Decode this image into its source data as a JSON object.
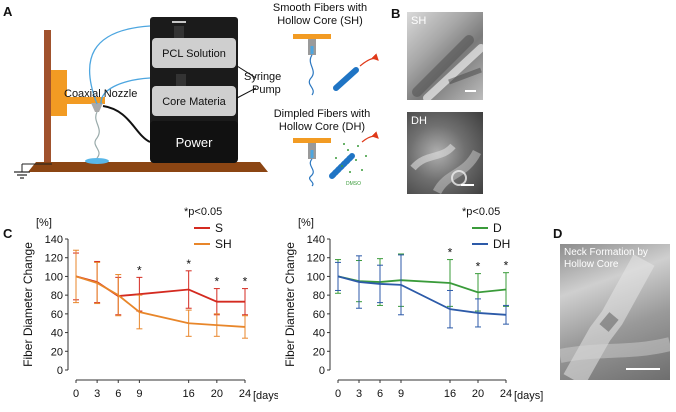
{
  "panel_a": {
    "letter": "A",
    "pcl_label": "PCL Solution",
    "core_label": "Core Materia",
    "power_label": "Power",
    "nozzle_label": "Coaxial Nozzle",
    "pump_label_1": "Syringe",
    "pump_label_2": "Pump",
    "sh_title_1": "Smooth Fibers with",
    "sh_title_2": "Hollow Core (SH)",
    "dh_title_1": "Dimpled Fibers with",
    "dh_title_2": "Hollow Core (DH)",
    "dmso_label": "DMSO"
  },
  "panel_b": {
    "letter": "B",
    "sh_label": "SH",
    "dh_label": "DH"
  },
  "panel_c": {
    "letter": "C"
  },
  "panel_d": {
    "letter": "D",
    "caption_1": "Neck Formation by",
    "caption_2": "Hollow Core"
  },
  "colors": {
    "S": "#d42a20",
    "SH": "#e8862a",
    "D": "#3a9b3a",
    "DH": "#2c5aa8"
  },
  "chart_data": [
    {
      "type": "line",
      "ylabel": "Fiber Diameter Change",
      "yunit": "[%]",
      "xunit": "[days]",
      "ylim": [
        0,
        140
      ],
      "yticks": [
        0,
        20,
        40,
        60,
        80,
        100,
        120,
        140
      ],
      "x": [
        0,
        3,
        6,
        9,
        16,
        20,
        24
      ],
      "significance_note": "*p<0.05",
      "significant_x": [
        9,
        16,
        20,
        24
      ],
      "series": [
        {
          "name": "S",
          "color_key": "S",
          "values": [
            100,
            94,
            79,
            81,
            86,
            73,
            73
          ],
          "errors": [
            25,
            22,
            20,
            18,
            20,
            14,
            14
          ]
        },
        {
          "name": "SH",
          "color_key": "SH",
          "values": [
            100,
            93,
            80,
            62,
            50,
            48,
            46
          ],
          "errors": [
            28,
            22,
            22,
            18,
            14,
            12,
            12
          ]
        }
      ]
    },
    {
      "type": "line",
      "ylabel": "Fiber Diameter Change",
      "yunit": "[%]",
      "xunit": "[days]",
      "ylim": [
        0,
        140
      ],
      "yticks": [
        0,
        20,
        40,
        60,
        80,
        100,
        120,
        140
      ],
      "x": [
        0,
        3,
        6,
        9,
        16,
        20,
        24
      ],
      "significance_note": "*p<0.05",
      "significant_x": [
        16,
        20,
        24
      ],
      "series": [
        {
          "name": "D",
          "color_key": "D",
          "values": [
            100,
            95,
            94,
            96,
            93,
            83,
            86
          ],
          "errors": [
            18,
            22,
            25,
            28,
            25,
            20,
            18
          ]
        },
        {
          "name": "DH",
          "color_key": "DH",
          "values": [
            100,
            94,
            92,
            91,
            65,
            61,
            59
          ],
          "errors": [
            15,
            28,
            20,
            32,
            20,
            15,
            10
          ]
        }
      ]
    }
  ]
}
